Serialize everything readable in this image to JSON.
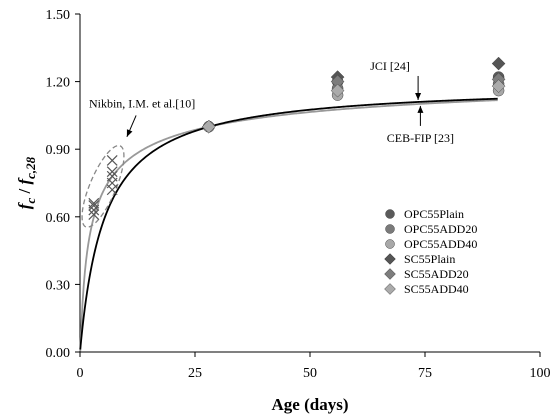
{
  "chart_data": {
    "type": "scatter",
    "xlabel": "Age (days)",
    "ylabel": {
      "base": "f",
      "sub": "c",
      "sep": " / ",
      "base2": "f",
      "sub2": "c,28"
    },
    "xlim": [
      0,
      100
    ],
    "ylim": [
      0,
      1.5
    ],
    "xticks": [
      "0",
      "25",
      "50",
      "75",
      "100"
    ],
    "yticks": [
      "0.00",
      "0.30",
      "0.60",
      "0.90",
      "1.20",
      "1.50"
    ],
    "grid": false,
    "legend_position": "right",
    "series": [
      {
        "name": "OPC55Plain",
        "marker": "circle",
        "color": "#5a5a5a",
        "points": [
          [
            28,
            1.0
          ],
          [
            56,
            1.2
          ],
          [
            91,
            1.22
          ]
        ]
      },
      {
        "name": "OPC55ADD20",
        "marker": "circle",
        "color": "#7a7a7a",
        "points": [
          [
            28,
            1.0
          ],
          [
            56,
            1.17
          ],
          [
            91,
            1.19
          ]
        ]
      },
      {
        "name": "OPC55ADD40",
        "marker": "circle",
        "color": "#a8a8a8",
        "points": [
          [
            28,
            1.0
          ],
          [
            56,
            1.14
          ],
          [
            91,
            1.16
          ]
        ]
      },
      {
        "name": "SC55Plain",
        "marker": "diamond",
        "color": "#555555",
        "points": [
          [
            28,
            1.0
          ],
          [
            56,
            1.22
          ],
          [
            91,
            1.28
          ]
        ]
      },
      {
        "name": "SC55ADD20",
        "marker": "diamond",
        "color": "#7d7d7d",
        "points": [
          [
            28,
            1.0
          ],
          [
            56,
            1.2
          ],
          [
            91,
            1.21
          ]
        ]
      },
      {
        "name": "SC55ADD40",
        "marker": "diamond",
        "color": "#ababab",
        "points": [
          [
            28,
            1.0
          ],
          [
            56,
            1.16
          ],
          [
            91,
            1.18
          ]
        ]
      }
    ],
    "extra_points": {
      "marker": "x",
      "color": "#555555",
      "points": [
        [
          3,
          0.61
        ],
        [
          3,
          0.63
        ],
        [
          3,
          0.65
        ],
        [
          3,
          0.66
        ],
        [
          7,
          0.72
        ],
        [
          7,
          0.75
        ],
        [
          7,
          0.78
        ],
        [
          7,
          0.8
        ],
        [
          7,
          0.85
        ]
      ]
    },
    "curves": [
      {
        "name": "JCI",
        "color": "#000000",
        "a": 4.5,
        "b": 0.84,
        "scale": 1.0,
        "arrow_x": 73.5,
        "label": "JCI [24]"
      },
      {
        "name": "CEB-FIP",
        "color": "#999999",
        "s": 0.25,
        "scale": 1.0,
        "arrow_x": 74,
        "label": "CEB-FIP [23]"
      }
    ],
    "annotations": [
      {
        "text": "Nikbin, I.M. et al.[10]"
      }
    ]
  }
}
